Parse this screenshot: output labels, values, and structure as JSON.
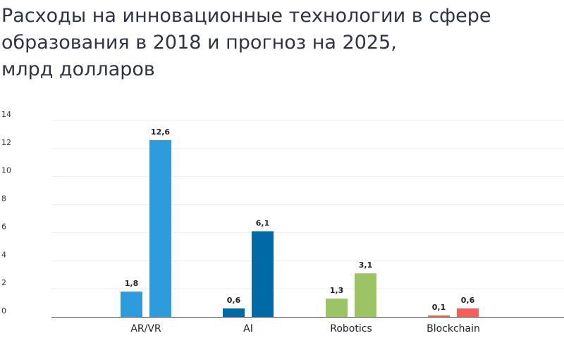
{
  "chart_data": {
    "type": "bar",
    "title_lines": [
      "Расходы на инновационные технологии в сфере",
      "образования в 2018 и прогноз на 2025,",
      "млрд долларов"
    ],
    "categories": [
      "AR/VR",
      "AI",
      "Robotics",
      "Blockchain"
    ],
    "values_2018": [
      1.8,
      0.6,
      1.3,
      0.1
    ],
    "values_2025": [
      12.6,
      6.1,
      3.1,
      0.6
    ],
    "labels_2018": [
      "1,8",
      "0,6",
      "1,3",
      "0,1"
    ],
    "labels_2025": [
      "12,6",
      "6,1",
      "3,1",
      "0,6"
    ],
    "colors_2018": [
      "#2e9bdc",
      "#006aa7",
      "#9cc464",
      "#f25f5c"
    ],
    "colors_2025": [
      "#2e9bdc",
      "#006aa7",
      "#9cc464",
      "#f25f5c"
    ],
    "yticks": [
      "0",
      "2",
      "4",
      "6",
      "8",
      "10",
      "12",
      "14"
    ],
    "ylim": [
      0,
      14
    ],
    "grid": true,
    "legend": "none"
  }
}
